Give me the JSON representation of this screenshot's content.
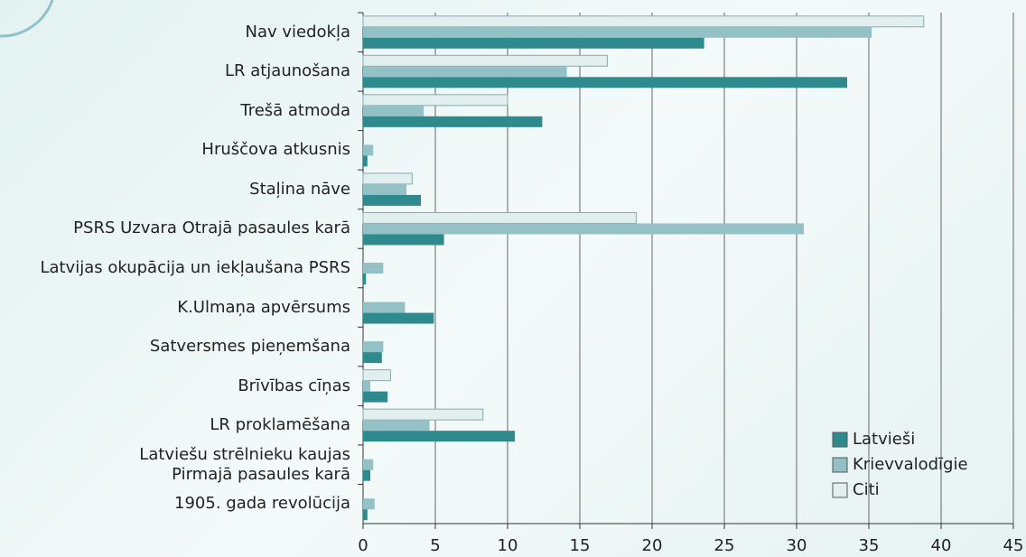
{
  "chart_data": {
    "type": "bar",
    "orientation": "horizontal",
    "categories": [
      "Nav viedokļa",
      "LR atjaunošana",
      "Trešā atmoda",
      "Hruščova atkusnis",
      "Staļina nāve",
      "PSRS Uzvara Otrajā pasaules karā",
      "Latvijas okupācija un iekļaušana PSRS",
      "K.Ulmaņa apvērsums",
      "Satversmes pieņemšana",
      "Brīvības cīņas",
      "LR proklamēšana",
      "Latviešu strēlnieku kaujas\nPirmajā pasaules karā",
      "1905.  gada revolūcija"
    ],
    "series": [
      {
        "name": "Latvieši",
        "color": "#2f8a8e",
        "values": [
          23.6,
          33.5,
          12.4,
          0.3,
          4.0,
          5.6,
          0.2,
          4.9,
          1.3,
          1.7,
          10.5,
          0.5,
          0.3
        ]
      },
      {
        "name": "Krievvalodīgie",
        "color": "#93c1c5",
        "values": [
          35.2,
          14.1,
          4.2,
          0.7,
          3.0,
          30.5,
          1.4,
          2.9,
          1.4,
          0.5,
          4.6,
          0.7,
          0.8
        ]
      },
      {
        "name": "Citi",
        "color": "#e1efef",
        "values": [
          38.8,
          16.9,
          10.0,
          0,
          3.4,
          18.9,
          0,
          0,
          0,
          1.9,
          8.3,
          0,
          0
        ]
      }
    ],
    "xlim": [
      0,
      45
    ],
    "xticks": [
      0,
      5,
      10,
      15,
      20,
      25,
      30,
      35,
      40,
      45
    ],
    "grid": true,
    "legend": "lower right"
  }
}
